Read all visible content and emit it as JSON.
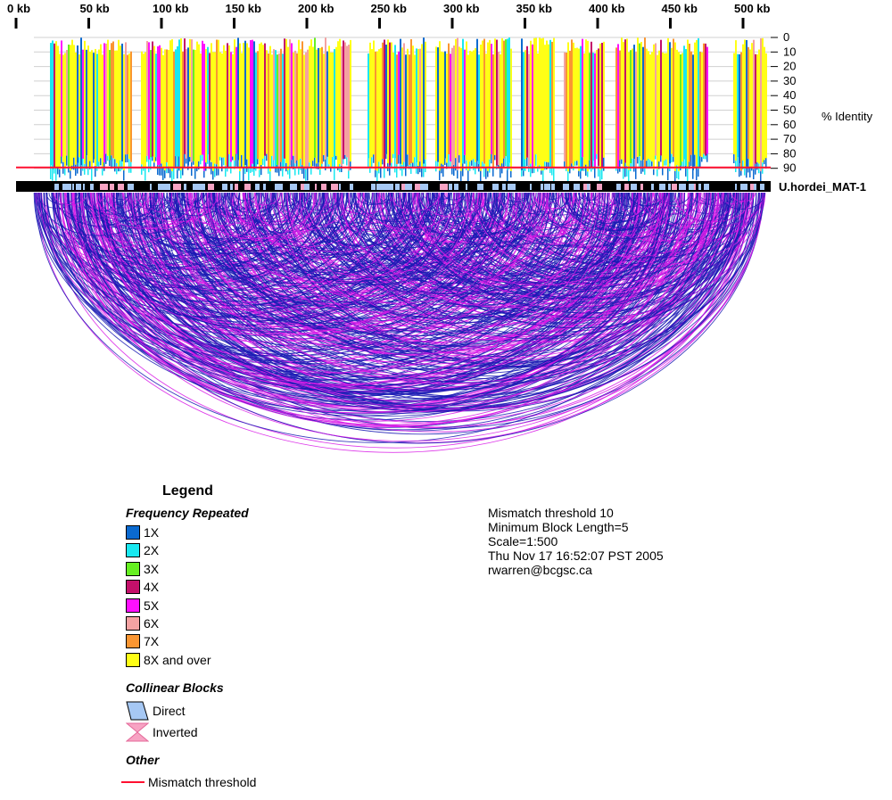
{
  "sequence_name": "U.hordei_MAT-1",
  "ruler": {
    "labels": [
      "0 kb",
      "50 kb",
      "100 kb",
      "150 kb",
      "200 kb",
      "250 kb",
      "300 kb",
      "350 kb",
      "400 kb",
      "450 kb",
      "500 kb"
    ]
  },
  "identity_axis": {
    "label": "% Identity",
    "ticks": [
      "0",
      "10",
      "20",
      "30",
      "40",
      "50",
      "60",
      "70",
      "80",
      "90"
    ]
  },
  "mismatch_threshold_value": 90,
  "colors": {
    "1X": "#0a6ad0",
    "2X": "#19e8f0",
    "3X": "#66f022",
    "4X": "#c4106a",
    "5X": "#ff10ff",
    "6X": "#f4a2a2",
    "7X": "#fa9632",
    "8X and over": "#ffff16",
    "direct": "#a6c8f4",
    "inverted": "#f7a3c3",
    "threshold_line": "#ff1030",
    "arc_dark": "#1a1ab4",
    "arc_light": "#d81ae6",
    "bar_black": "#000000"
  },
  "legend": {
    "title": "Legend",
    "frequency_title": "Frequency Repeated",
    "frequency_items": [
      {
        "label": "1X",
        "color": "#0a6ad0"
      },
      {
        "label": "2X",
        "color": "#19e8f0"
      },
      {
        "label": "3X",
        "color": "#66f022"
      },
      {
        "label": "4X",
        "color": "#c4106a"
      },
      {
        "label": "5X",
        "color": "#ff10ff"
      },
      {
        "label": "6X",
        "color": "#f4a2a2"
      },
      {
        "label": "7X",
        "color": "#fa9632"
      },
      {
        "label": "8X and over",
        "color": "#ffff16"
      }
    ],
    "collinear_title": "Collinear Blocks",
    "direct_label": "Direct",
    "inverted_label": "Inverted",
    "other_title": "Other",
    "mismatch_label": "Mismatch threshold"
  },
  "parameters": {
    "mismatch": "Mismatch threshold 10",
    "min_block": "Minimum Block Length=5",
    "scale": "Scale=1:500",
    "date": "Thu Nov 17 16:52:07 PST 2005",
    "email": "rwarren@bcgsc.ca"
  }
}
